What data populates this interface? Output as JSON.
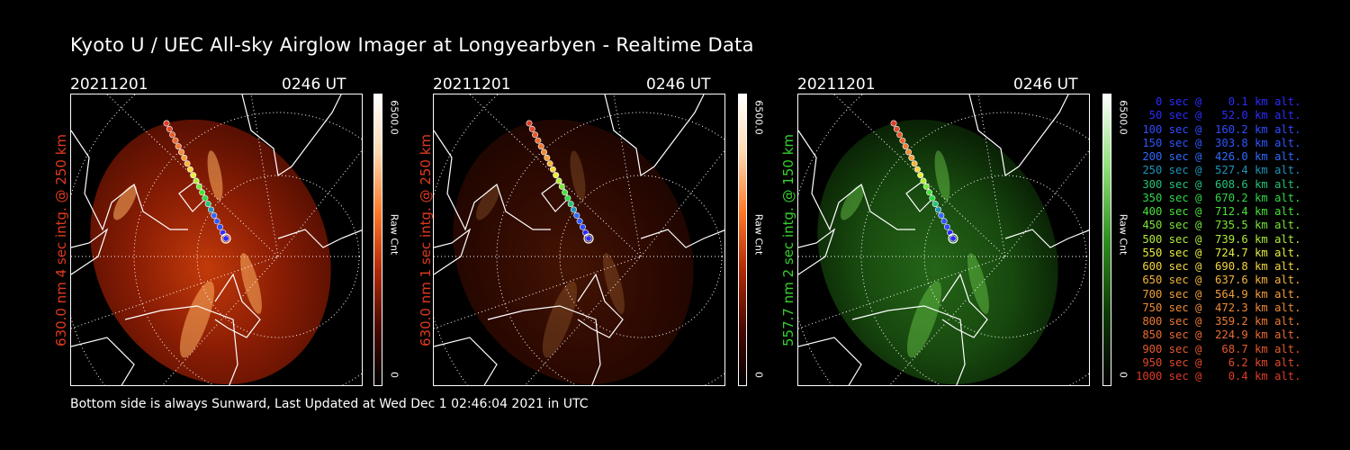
{
  "title": "Kyoto U / UEC All-sky Airglow Imager at Longyearbyen - Realtime Data",
  "footer": "Bottom side is always Sunward, Last Updated at Wed Dec  1 02:46:04 2021 in UTC",
  "panels": [
    {
      "date": "20211201",
      "time": "0246 UT",
      "ylabel": "630.0 nm 4 sec intg. @ 250 km",
      "label_color": "#e03a1e",
      "cbar_max": "6500.0",
      "cbar_unit": "Raw Cnt",
      "cbar_min": "0",
      "map": "red",
      "brightness": 1.0
    },
    {
      "date": "20211201",
      "time": "0246 UT",
      "ylabel": "630.0 nm 1 sec intg. @ 250 km",
      "label_color": "#e03a1e",
      "cbar_max": "6500.0",
      "cbar_unit": "Raw Cnt",
      "cbar_min": "0",
      "map": "red",
      "brightness": 0.35
    },
    {
      "date": "20211201",
      "time": "0246 UT",
      "ylabel": "557.7 nm 2 sec intg. @ 150 km",
      "label_color": "#35d12c",
      "cbar_max": "6500.0",
      "cbar_unit": "Raw Cnt",
      "cbar_min": "0",
      "map": "green",
      "brightness": 0.8
    }
  ],
  "legend": [
    {
      "text": "   0 sec @    0.1 km alt.",
      "color": "#2b2bff"
    },
    {
      "text": "  50 sec @   52.0 km alt.",
      "color": "#2b2bff"
    },
    {
      "text": " 100 sec @  160.2 km alt.",
      "color": "#2f4cff"
    },
    {
      "text": " 150 sec @  303.8 km alt.",
      "color": "#2f56ff"
    },
    {
      "text": " 200 sec @  426.0 km alt.",
      "color": "#2f6aff"
    },
    {
      "text": " 250 sec @  527.4 km alt.",
      "color": "#1f93b8"
    },
    {
      "text": " 300 sec @  608.6 km alt.",
      "color": "#23c37a"
    },
    {
      "text": " 350 sec @  670.2 km alt.",
      "color": "#2fd84a"
    },
    {
      "text": " 400 sec @  712.4 km alt.",
      "color": "#4ce03a"
    },
    {
      "text": " 450 sec @  735.5 km alt.",
      "color": "#79e63a"
    },
    {
      "text": " 500 sec @  739.6 km alt.",
      "color": "#b1ec3c"
    },
    {
      "text": " 550 sec @  724.7 km alt.",
      "color": "#e7ef3f"
    },
    {
      "text": " 600 sec @  690.8 km alt.",
      "color": "#f4d640"
    },
    {
      "text": " 650 sec @  637.6 km alt.",
      "color": "#f5b43d"
    },
    {
      "text": " 700 sec @  564.9 km alt.",
      "color": "#f3a03a"
    },
    {
      "text": " 750 sec @  472.3 km alt.",
      "color": "#f18a36"
    },
    {
      "text": " 800 sec @  359.2 km alt.",
      "color": "#ee7a33"
    },
    {
      "text": " 850 sec @  224.9 km alt.",
      "color": "#ea6a30"
    },
    {
      "text": " 900 sec @   68.7 km alt.",
      "color": "#e65a2c"
    },
    {
      "text": " 950 sec @    6.2 km alt.",
      "color": "#e2482a"
    },
    {
      "text": "1000 sec @    0.4 km alt.",
      "color": "#de3b26"
    }
  ]
}
